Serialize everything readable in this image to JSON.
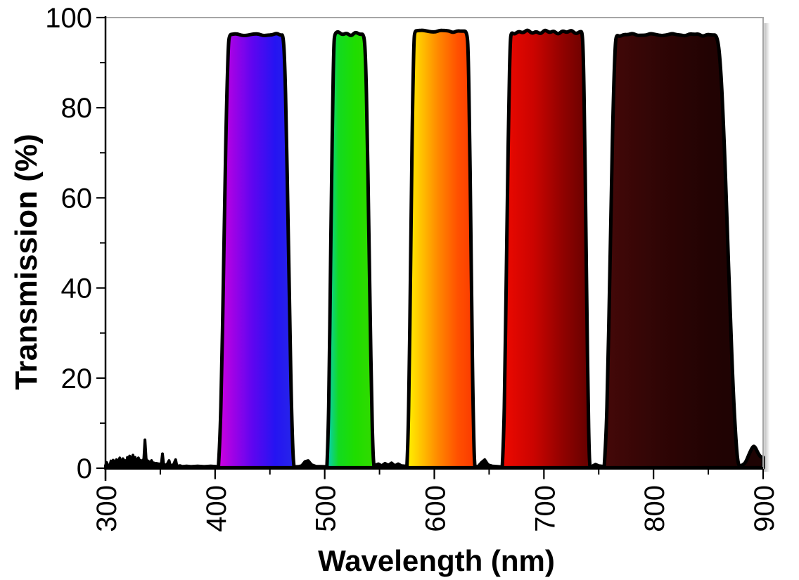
{
  "colors": {
    "background": "#ffffff",
    "axis": "#000000",
    "text": "#000000",
    "plot_border": "#a6a6a6",
    "curve_outline": "#000000",
    "shadow": "#787878"
  },
  "chart_data": {
    "type": "area",
    "title": "",
    "xlabel": "Wavelength (nm)",
    "ylabel": "Transmission (%)",
    "xlim": [
      300,
      900
    ],
    "ylim": [
      0,
      100
    ],
    "grid": "off",
    "legend": "none",
    "x_major_ticks": [
      300,
      400,
      500,
      600,
      700,
      800,
      900
    ],
    "x_minor_ticks": [
      350,
      450,
      550,
      650,
      750,
      850
    ],
    "y_major_ticks": [
      0,
      20,
      40,
      60,
      80,
      100
    ],
    "y_minor_ticks": [
      10,
      30,
      50,
      70,
      90
    ],
    "x_tick_label_rotation_deg": -90,
    "bands": [
      {
        "name": "violet-blue",
        "base_nm": [
          403,
          472
        ],
        "top_nm": [
          413,
          462
        ],
        "peak_pct": 96.2,
        "gradient": [
          {
            "o": 0,
            "c": "#cf00df"
          },
          {
            "o": 0.45,
            "c": "#5f05f0"
          },
          {
            "o": 0.75,
            "c": "#2514f2"
          },
          {
            "o": 1,
            "c": "#2626e9"
          }
        ]
      },
      {
        "name": "green",
        "base_nm": [
          502,
          545
        ],
        "top_nm": [
          509,
          536
        ],
        "peak_pct": 96.4,
        "gradient": [
          {
            "o": 0,
            "c": "#0accc0"
          },
          {
            "o": 0.25,
            "c": "#12da20"
          },
          {
            "o": 0.6,
            "c": "#1fdd00"
          },
          {
            "o": 1,
            "c": "#33da00"
          }
        ]
      },
      {
        "name": "yellow-orange",
        "base_nm": [
          575,
          637
        ],
        "top_nm": [
          582,
          630
        ],
        "peak_pct": 97.0,
        "gradient": [
          {
            "o": 0,
            "c": "#fff200"
          },
          {
            "o": 0.12,
            "c": "#ffd800"
          },
          {
            "o": 0.45,
            "c": "#ff8a00"
          },
          {
            "o": 0.75,
            "c": "#ff5000"
          },
          {
            "o": 1,
            "c": "#fa3900"
          }
        ]
      },
      {
        "name": "red",
        "base_nm": [
          662,
          742
        ],
        "top_nm": [
          670,
          735
        ],
        "peak_pct": 96.8,
        "gradient": [
          {
            "o": 0,
            "c": "#ee0900"
          },
          {
            "o": 0.35,
            "c": "#cc0400"
          },
          {
            "o": 0.7,
            "c": "#8f0200"
          },
          {
            "o": 1,
            "c": "#640100"
          }
        ]
      },
      {
        "name": "deep-red",
        "base_nm": [
          755,
          878
        ],
        "top_nm": [
          766,
          858
        ],
        "peak_pct": 96.2,
        "gradient": [
          {
            "o": 0,
            "c": "#450808"
          },
          {
            "o": 0.4,
            "c": "#300505"
          },
          {
            "o": 0.75,
            "c": "#230303"
          },
          {
            "o": 1,
            "c": "#1e0303"
          }
        ],
        "tail_pts": [
          [
            881,
            0.7
          ],
          [
            884,
            1.2
          ],
          [
            888,
            3.6
          ],
          [
            891,
            5.0
          ],
          [
            893,
            4.6
          ],
          [
            896,
            3.0
          ],
          [
            898,
            2.5
          ],
          [
            900,
            2.4
          ]
        ]
      }
    ],
    "baseline_noise_points": [
      [
        300,
        0.6
      ],
      [
        301,
        1.3
      ],
      [
        302,
        0.7
      ],
      [
        304,
        0.6
      ],
      [
        305,
        1.6
      ],
      [
        306,
        0.9
      ],
      [
        307,
        1.8
      ],
      [
        308,
        0.9
      ],
      [
        310,
        1.9
      ],
      [
        311,
        0.9
      ],
      [
        312,
        1.6
      ],
      [
        313,
        2.3
      ],
      [
        314,
        1.1
      ],
      [
        316,
        2.1
      ],
      [
        317,
        1.0
      ],
      [
        318,
        1.7
      ],
      [
        319,
        0.9
      ],
      [
        320,
        2.4
      ],
      [
        321,
        1.2
      ],
      [
        322,
        2.7
      ],
      [
        323,
        1.3
      ],
      [
        324,
        2.2
      ],
      [
        325,
        2.9
      ],
      [
        326,
        1.5
      ],
      [
        327,
        2.4
      ],
      [
        328,
        1.2
      ],
      [
        329,
        1.9
      ],
      [
        330,
        2.3
      ],
      [
        331,
        1.1
      ],
      [
        332,
        1.8
      ],
      [
        333,
        1.0
      ],
      [
        334,
        1.6
      ],
      [
        335,
        2.1
      ],
      [
        336,
        6.3
      ],
      [
        337,
        2.2
      ],
      [
        338,
        1.2
      ],
      [
        339,
        1.6
      ],
      [
        340,
        0.9
      ],
      [
        341,
        1.3
      ],
      [
        342,
        1.7
      ],
      [
        343,
        0.8
      ],
      [
        344,
        1.2
      ],
      [
        345,
        0.7
      ],
      [
        346,
        1.1
      ],
      [
        348,
        1.0
      ],
      [
        350,
        0.9
      ],
      [
        351,
        1.2
      ],
      [
        352,
        3.2
      ],
      [
        353,
        1.0
      ],
      [
        354,
        0.7
      ],
      [
        356,
        0.8
      ],
      [
        358,
        1.7
      ],
      [
        359,
        0.8
      ],
      [
        360,
        0.6
      ],
      [
        362,
        0.8
      ],
      [
        364,
        1.9
      ],
      [
        365,
        0.7
      ],
      [
        366,
        0.5
      ],
      [
        368,
        0.6
      ],
      [
        370,
        0.4
      ],
      [
        374,
        0.5
      ],
      [
        378,
        0.4
      ],
      [
        384,
        0.5
      ],
      [
        390,
        0.4
      ],
      [
        396,
        0.5
      ],
      [
        402,
        0.4
      ],
      [
        412,
        0.3
      ],
      [
        430,
        0.3
      ],
      [
        452,
        0.3
      ],
      [
        468,
        0.35
      ],
      [
        476,
        0.4
      ],
      [
        479,
        0.6
      ],
      [
        482,
        1.5
      ],
      [
        485,
        1.7
      ],
      [
        488,
        0.8
      ],
      [
        492,
        0.45
      ],
      [
        500,
        0.4
      ],
      [
        515,
        0.3
      ],
      [
        535,
        0.35
      ],
      [
        543,
        0.5
      ],
      [
        546,
        0.7
      ],
      [
        549,
        1.0
      ],
      [
        552,
        0.6
      ],
      [
        555,
        1.1
      ],
      [
        558,
        0.7
      ],
      [
        561,
        1.2
      ],
      [
        564,
        0.6
      ],
      [
        567,
        1.0
      ],
      [
        570,
        0.6
      ],
      [
        574,
        0.5
      ],
      [
        585,
        0.35
      ],
      [
        605,
        0.3
      ],
      [
        625,
        0.3
      ],
      [
        640,
        0.45
      ],
      [
        643,
        1.3
      ],
      [
        646,
        1.9
      ],
      [
        649,
        0.8
      ],
      [
        653,
        0.5
      ],
      [
        665,
        0.3
      ],
      [
        690,
        0.3
      ],
      [
        715,
        0.3
      ],
      [
        736,
        0.35
      ],
      [
        744,
        0.5
      ],
      [
        747,
        0.9
      ],
      [
        750,
        0.6
      ],
      [
        756,
        0.4
      ],
      [
        775,
        0.3
      ],
      [
        800,
        0.3
      ],
      [
        825,
        0.3
      ],
      [
        850,
        0.3
      ],
      [
        862,
        0.4
      ],
      [
        872,
        0.5
      ],
      [
        880,
        0.4
      ],
      [
        890,
        0.4
      ],
      [
        900,
        0.5
      ]
    ]
  }
}
